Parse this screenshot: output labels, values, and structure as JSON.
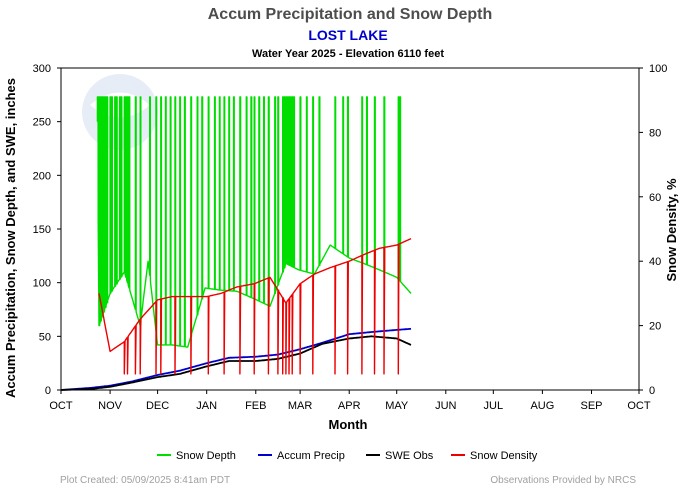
{
  "chart_data": {
    "type": "line",
    "title": "Accum Precipitation and Snow Depth",
    "subtitle": "LOST LAKE",
    "subtitle2": "Water Year 2025 -  Elevation 6110 feet",
    "xlabel": "Month",
    "ylabel_left": "Accum Precipitation, Snow Depth, and SWE, inches",
    "ylabel_right": "Snow Density, %",
    "x_ticks": [
      "OCT",
      "NOV",
      "DEC",
      "JAN",
      "FEB",
      "MAR",
      "APR",
      "MAY",
      "JUN",
      "JUL",
      "AUG",
      "SEP",
      "OCT"
    ],
    "ylim_left": [
      0,
      300
    ],
    "y_ticks_left": [
      "0",
      "50",
      "100",
      "150",
      "200",
      "250",
      "300"
    ],
    "ylim_right": [
      0,
      100
    ],
    "y_ticks_right": [
      "0",
      "20",
      "40",
      "60",
      "80",
      "100"
    ],
    "grid": false,
    "legend_position": "bottom",
    "series": [
      {
        "name": "Snow Depth",
        "axis": "left",
        "color": "#00dd00",
        "style": "noisy",
        "x": [
          "Oct 24",
          "Oct 25",
          "Nov 1",
          "Nov 10",
          "Nov 20",
          "Nov 25",
          "Dec 1",
          "Dec 10",
          "Dec 20",
          "Dec 31",
          "Jan 10",
          "Jan 20",
          "Jan 31",
          "Feb 10",
          "Feb 20",
          "Feb 28",
          "Mar 10",
          "Mar 20",
          "Apr 1",
          "Apr 10",
          "Apr 20",
          "May 1",
          "May 10"
        ],
        "values": [
          250,
          60,
          90,
          110,
          60,
          120,
          42,
          42,
          40,
          95,
          93,
          92,
          85,
          78,
          118,
          112,
          108,
          135,
          123,
          118,
          112,
          105,
          90
        ],
        "spikes_to": 273,
        "spike_days": [
          4,
          6,
          8,
          9,
          10,
          11,
          12,
          14,
          15,
          17,
          18,
          19,
          20,
          21,
          23,
          24,
          25,
          26,
          27,
          28,
          29,
          31,
          32,
          34,
          35,
          37,
          38,
          40,
          41,
          42,
          43,
          47,
          50,
          56,
          60,
          63,
          66,
          69,
          72,
          75,
          78,
          82,
          86,
          89,
          93,
          97,
          100,
          103,
          106,
          109,
          113,
          117,
          120,
          122,
          125,
          128,
          131,
          135,
          137,
          140,
          141,
          142,
          143,
          144,
          145,
          146,
          147,
          151,
          155,
          159,
          163,
          173,
          178,
          181,
          190,
          193,
          198,
          204,
          213,
          214
        ]
      },
      {
        "name": "Accum Precip",
        "axis": "left",
        "color": "#0000cc",
        "style": "smooth",
        "x": [
          "Oct 1",
          "Oct 20",
          "Nov 1",
          "Nov 15",
          "Dec 1",
          "Dec 15",
          "Jan 1",
          "Jan 15",
          "Feb 1",
          "Feb 15",
          "Mar 1",
          "Mar 15",
          "Apr 1",
          "Apr 15",
          "May 1",
          "May 10"
        ],
        "values": [
          0,
          2,
          4,
          8,
          14,
          18,
          25,
          30,
          31,
          33,
          38,
          44,
          52,
          54,
          56,
          57
        ]
      },
      {
        "name": "SWE Obs",
        "axis": "left",
        "color": "#000000",
        "style": "smooth",
        "x": [
          "Oct 1",
          "Oct 20",
          "Nov 1",
          "Nov 15",
          "Dec 1",
          "Dec 15",
          "Jan 1",
          "Jan 15",
          "Feb 1",
          "Feb 15",
          "Mar 1",
          "Mar 15",
          "Apr 1",
          "Apr 15",
          "May 1",
          "May 10"
        ],
        "values": [
          0,
          1,
          3,
          7,
          12,
          15,
          22,
          27,
          27,
          29,
          34,
          43,
          48,
          50,
          48,
          42
        ]
      },
      {
        "name": "Snow Density",
        "axis": "right",
        "color": "#ee0000",
        "style": "noisy",
        "x": [
          "Oct 25",
          "Nov 1",
          "Nov 10",
          "Nov 20",
          "Dec 1",
          "Dec 10",
          "Dec 20",
          "Jan 1",
          "Jan 10",
          "Jan 20",
          "Jan 31",
          "Feb 10",
          "Feb 20",
          "Mar 1",
          "Mar 10",
          "Mar 20",
          "Apr 1",
          "Apr 10",
          "Apr 20",
          "May 1",
          "May 10"
        ],
        "values": [
          30,
          12,
          15,
          22,
          28,
          29,
          29,
          29,
          30,
          32,
          33,
          35,
          27,
          33,
          36,
          38,
          40,
          42,
          44,
          45,
          47
        ],
        "dips_to": 5,
        "dip_days": [
          40,
          42,
          47,
          50,
          60,
          63,
          72,
          82,
          93,
          103,
          113,
          122,
          131,
          137,
          140,
          142,
          144,
          146,
          151,
          159,
          173,
          181,
          190,
          198,
          204,
          213
        ]
      }
    ]
  },
  "legend": {
    "items": [
      {
        "label": "Snow Depth",
        "color": "#00dd00"
      },
      {
        "label": "Accum Precip",
        "color": "#0000cc"
      },
      {
        "label": "SWE Obs",
        "color": "#000000"
      },
      {
        "label": "Snow Density",
        "color": "#ee0000"
      }
    ]
  },
  "footer": {
    "left": "Plot Created: 05/09/2025 8:41am PDT",
    "right": "Observations Provided by NRCS"
  }
}
